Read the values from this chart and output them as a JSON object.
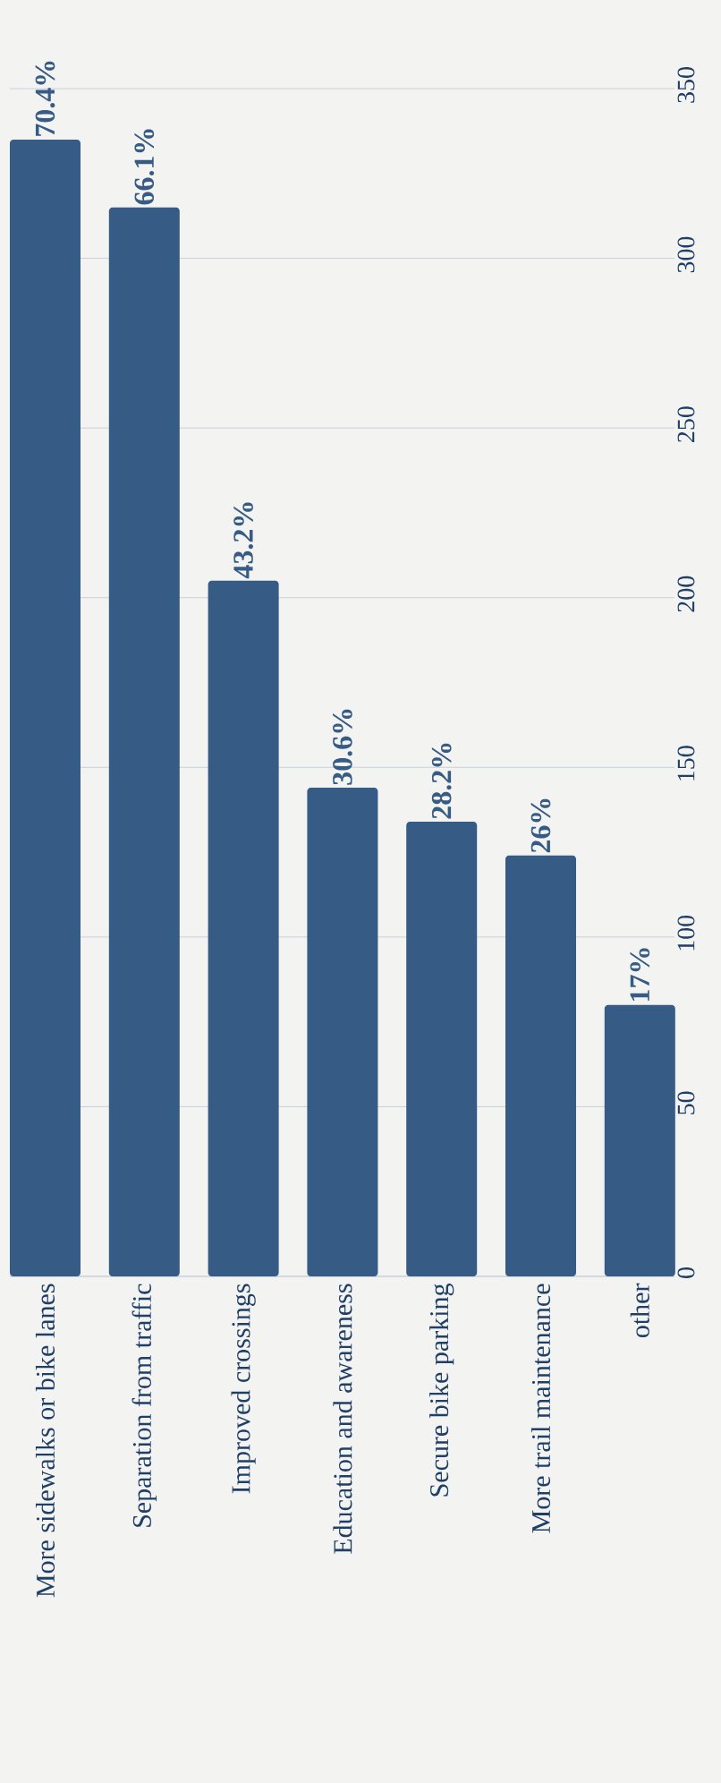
{
  "chart_data": {
    "type": "bar",
    "categories": [
      "More sidewalks or bike lanes",
      "Separation from traffic",
      "Improved crossings",
      "Education and awareness",
      "Secure bike parking",
      "More trail maintenance",
      "other"
    ],
    "values": [
      335,
      315,
      205,
      144,
      134,
      124,
      80
    ],
    "annotations": [
      {
        "text": "70.4%",
        "x": "More sidewalks or bike lanes",
        "y": 335
      },
      {
        "text": "66.1%",
        "x": "Separation from traffic",
        "y": 315
      },
      {
        "text": "43.2%",
        "x": "Improved crossings",
        "y": 205
      },
      {
        "text": "30.6%",
        "x": "Education and awareness",
        "y": 144
      },
      {
        "text": "28.2%",
        "x": "Secure bike parking",
        "y": 134
      },
      {
        "text": "26%",
        "x": "More trail maintenance",
        "y": 124
      },
      {
        "text": "17%",
        "x": "other",
        "y": 80
      }
    ],
    "color": "#365b84",
    "ylim": [
      0,
      350
    ],
    "yticks": [
      0,
      50,
      100,
      150,
      200,
      250,
      300,
      350
    ],
    "grid": "y"
  }
}
